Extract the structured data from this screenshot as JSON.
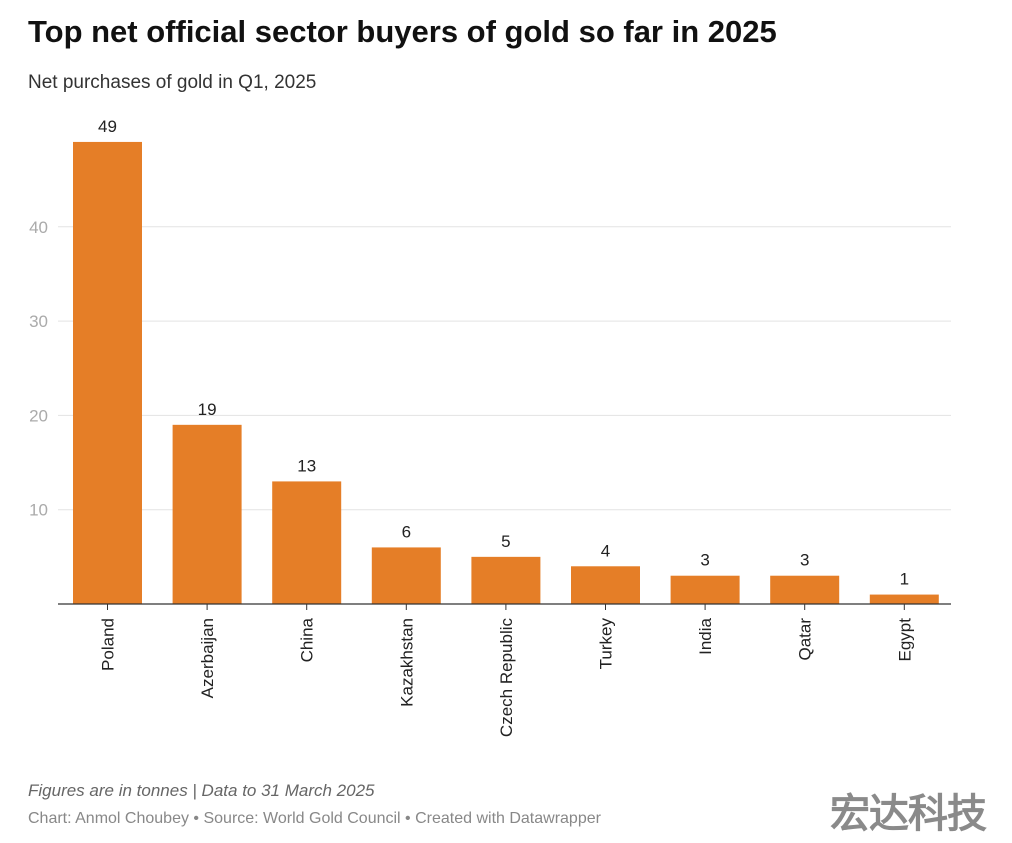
{
  "title": "Top net official sector buyers of gold so far in 2025",
  "subtitle": "Net purchases of gold in Q1, 2025",
  "footer": {
    "note": "Figures are in tonnes | Data to 31 March 2025",
    "credit": "Chart: Anmol Choubey • Source: World Gold Council • Created with Datawrapper",
    "watermark": "宏达科技"
  },
  "chart_data": {
    "type": "bar",
    "categories": [
      "Poland",
      "Azerbaijan",
      "China",
      "Kazakhstan",
      "Czech Republic",
      "Turkey",
      "India",
      "Qatar",
      "Egypt"
    ],
    "values": [
      49,
      19,
      13,
      6,
      5,
      4,
      3,
      3,
      1
    ],
    "yticks": [
      10,
      20,
      30,
      40
    ],
    "ylim": [
      0,
      50
    ],
    "grid": true,
    "color": "#e57e27",
    "xlabel": "",
    "ylabel": ""
  }
}
